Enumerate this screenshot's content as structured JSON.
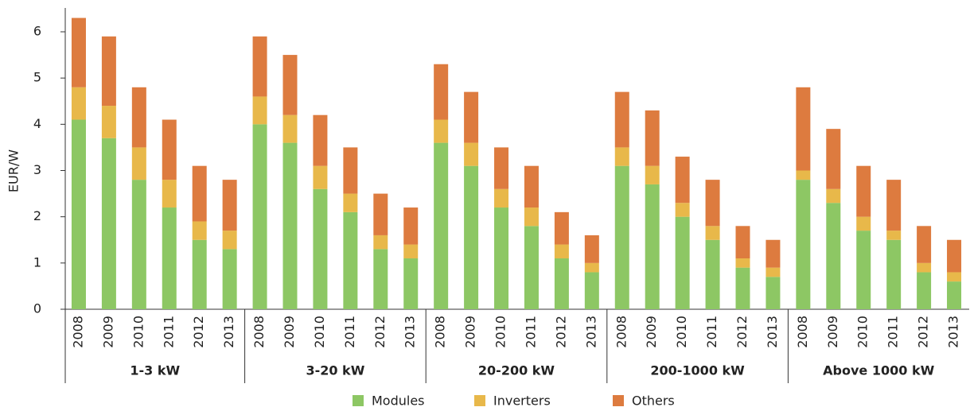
{
  "chart_data": {
    "type": "stacked-bar",
    "y_label": "EUR/W",
    "categories": [
      "2008",
      "2009",
      "2010",
      "2011",
      "2012",
      "2013",
      "2008",
      "2009",
      "2010",
      "2011",
      "2012",
      "2013",
      "2008",
      "2009",
      "2010",
      "2011",
      "2012",
      "2013",
      "2008",
      "2009",
      "2010",
      "2011",
      "2012",
      "2013",
      "2008",
      "2009",
      "2010",
      "2011",
      "2012",
      "2013"
    ],
    "groups": [
      "1-3 kW",
      "3-20 kW",
      "20-200 kW",
      "200-1000 kW",
      "Above 1000 kW"
    ],
    "series": [
      {
        "name": "Modules",
        "color": "#8dc764",
        "values": [
          4.1,
          3.7,
          2.8,
          2.2,
          1.5,
          1.3,
          4.0,
          3.6,
          2.6,
          2.1,
          1.3,
          1.1,
          3.6,
          3.1,
          2.2,
          1.8,
          1.1,
          0.8,
          3.1,
          2.7,
          2.0,
          1.5,
          0.9,
          0.7,
          2.8,
          2.3,
          1.7,
          1.5,
          0.8,
          0.6
        ]
      },
      {
        "name": "Inverters",
        "color": "#e8b84a",
        "values": [
          0.7,
          0.7,
          0.7,
          0.6,
          0.4,
          0.4,
          0.6,
          0.6,
          0.5,
          0.4,
          0.3,
          0.3,
          0.5,
          0.5,
          0.4,
          0.4,
          0.3,
          0.2,
          0.4,
          0.4,
          0.3,
          0.3,
          0.2,
          0.2,
          0.2,
          0.3,
          0.3,
          0.2,
          0.2,
          0.2
        ]
      },
      {
        "name": "Others",
        "color": "#dd7b3f",
        "values": [
          1.5,
          1.5,
          1.3,
          1.3,
          1.2,
          1.1,
          1.3,
          1.3,
          1.1,
          1.0,
          0.9,
          0.8,
          1.2,
          1.1,
          0.9,
          0.9,
          0.7,
          0.6,
          1.2,
          1.2,
          1.0,
          1.0,
          0.7,
          0.6,
          1.8,
          1.3,
          1.1,
          1.1,
          0.8,
          0.7
        ]
      }
    ],
    "ylim": [
      0,
      6.3
    ],
    "yticks": [
      0,
      1,
      2,
      3,
      4,
      5,
      6
    ],
    "grid": false
  }
}
